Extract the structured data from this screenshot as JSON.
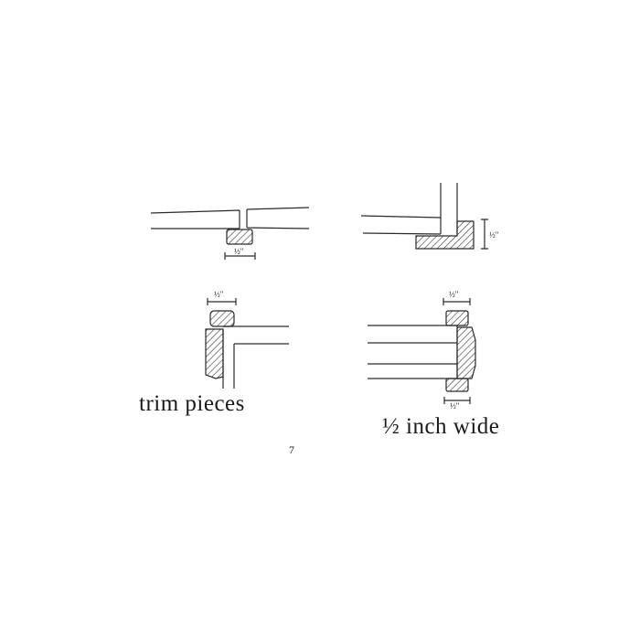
{
  "labels": {
    "trim_pieces": "trim pieces",
    "half_inch_wide": "½ inch wide",
    "page_mark": "7"
  },
  "dimension_marks": {
    "top_left": "½\"",
    "top_right": "½\"",
    "bottom_left": "½\"",
    "bottom_right_top": "½\"",
    "bottom_right_bottom": "½\""
  },
  "colors": {
    "ink": "#2a2a2a",
    "paper": "#ffffff"
  }
}
